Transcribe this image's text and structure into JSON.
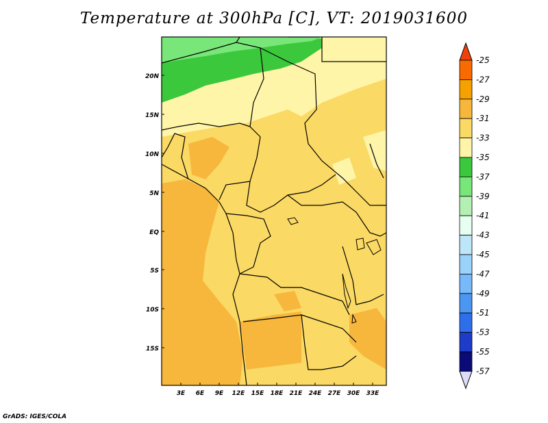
{
  "title": "Temperature at 300hPa [C], VT: 2019031600",
  "credit": "GrADS: IGES/COLA",
  "map": {
    "lon_labels": [
      "3E",
      "6E",
      "9E",
      "12E",
      "15E",
      "18E",
      "21E",
      "24E",
      "27E",
      "30E",
      "33E"
    ],
    "lat_labels": [
      "20N",
      "15N",
      "10N",
      "5N",
      "EQ",
      "5S",
      "10S",
      "15S"
    ]
  },
  "colorbar": {
    "levels": [
      "-25",
      "-27",
      "-29",
      "-31",
      "-33",
      "-35",
      "-37",
      "-39",
      "-41",
      "-43",
      "-45",
      "-47",
      "-49",
      "-51",
      "-53",
      "-55",
      "-57"
    ],
    "colors": [
      "#f0410a",
      "#f76b00",
      "#f7a100",
      "#f7b73c",
      "#fad964",
      "#fff5a8",
      "#3cc83c",
      "#78e678",
      "#b4f0b4",
      "#e6fff0",
      "#bee6fa",
      "#9bd2fa",
      "#78b9fa",
      "#4b96f0",
      "#2d6eeb",
      "#1e3cc8",
      "#0a0a78",
      "#dcdcf8"
    ]
  }
}
